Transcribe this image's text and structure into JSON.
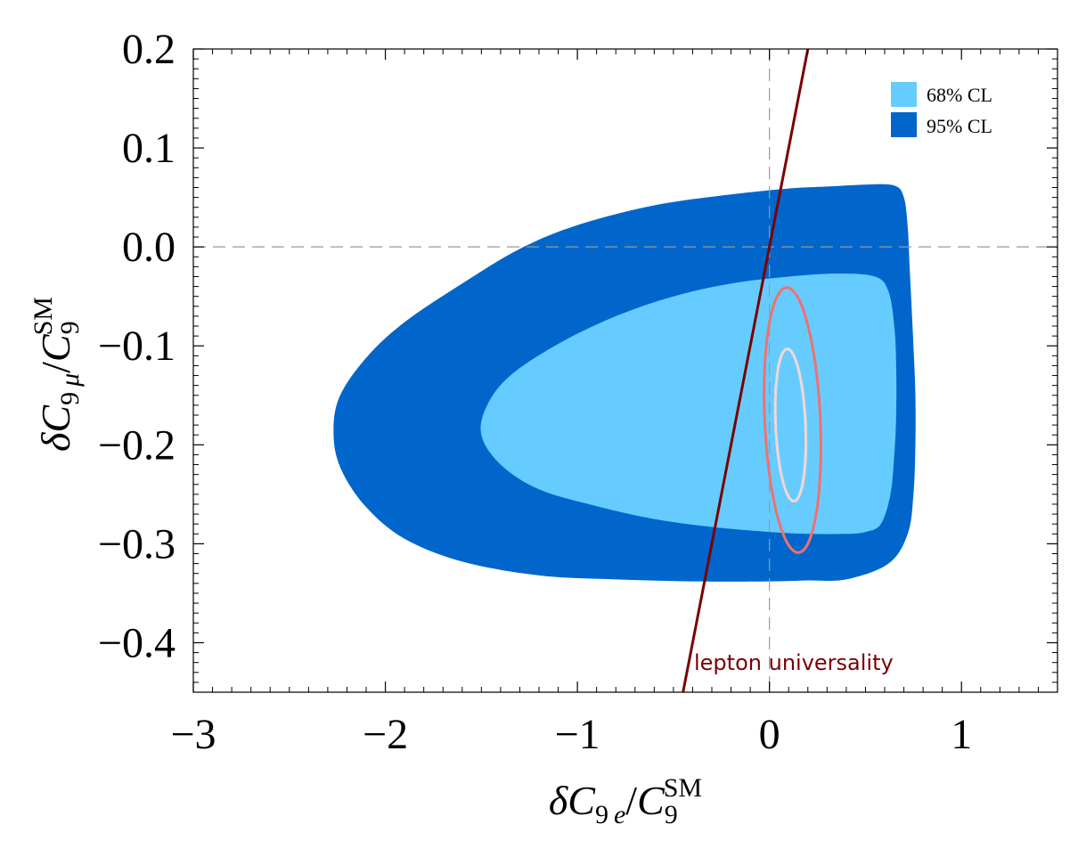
{
  "chart_data": {
    "type": "contour",
    "title": "",
    "xlabel": "δC9e/C9SM",
    "xlabel_parts": {
      "delta": "δ",
      "C": "C",
      "sub": "9",
      "subvar": "e",
      "slash": "/",
      "C2": "C",
      "sub2": "9",
      "sup2": "SM"
    },
    "ylabel": "δC9μ/C9SM",
    "ylabel_parts": {
      "delta": "δ",
      "C": "C",
      "sub": "9",
      "subvar": "μ",
      "slash": "/",
      "C2": "C",
      "sub2": "9",
      "sup2": "SM"
    },
    "xlim": [
      -3,
      1.5
    ],
    "ylim": [
      -0.45,
      0.2
    ],
    "xticks": [
      -3,
      -2,
      -1,
      0,
      1
    ],
    "xtick_labels": [
      "−3",
      "−2",
      "−1",
      "0",
      "1"
    ],
    "yticks": [
      0.2,
      0.1,
      0.0,
      -0.1,
      -0.2,
      -0.3,
      -0.4
    ],
    "ytick_labels": [
      "0.2",
      "0.1",
      "0.0",
      "−0.1",
      "−0.2",
      "−0.3",
      "−0.4"
    ],
    "colors": {
      "cl68": "#66CCFF",
      "cl95": "#0066CC",
      "contour_outer": "#F07070",
      "contour_inner": "#F2D6D6",
      "lepton_line": "#7A0000",
      "guides": "#999999"
    },
    "legend": {
      "position": "top-right",
      "entries": [
        {
          "label": "68% CL",
          "color": "#66CCFF"
        },
        {
          "label": "95% CL",
          "color": "#0066CC"
        }
      ]
    },
    "regions": [
      {
        "name": "95% CL",
        "color": "#0066CC",
        "points": [
          [
            0.65,
            0.062
          ],
          [
            0.7,
            0.05
          ],
          [
            0.72,
            0.02
          ],
          [
            0.73,
            -0.02
          ],
          [
            0.74,
            -0.06
          ],
          [
            0.75,
            -0.1
          ],
          [
            0.76,
            -0.15
          ],
          [
            0.76,
            -0.2
          ],
          [
            0.75,
            -0.25
          ],
          [
            0.72,
            -0.29
          ],
          [
            0.62,
            -0.32
          ],
          [
            0.4,
            -0.336
          ],
          [
            0.2,
            -0.337
          ],
          [
            0.0,
            -0.338
          ],
          [
            -0.4,
            -0.338
          ],
          [
            -0.8,
            -0.336
          ],
          [
            -1.2,
            -0.332
          ],
          [
            -1.6,
            -0.318
          ],
          [
            -1.9,
            -0.295
          ],
          [
            -2.1,
            -0.263
          ],
          [
            -2.23,
            -0.225
          ],
          [
            -2.27,
            -0.19
          ],
          [
            -2.24,
            -0.152
          ],
          [
            -2.1,
            -0.112
          ],
          [
            -1.9,
            -0.076
          ],
          [
            -1.6,
            -0.037
          ],
          [
            -1.3,
            -0.002
          ],
          [
            -1.0,
            0.022
          ],
          [
            -0.6,
            0.042
          ],
          [
            -0.2,
            0.053
          ],
          [
            0.1,
            0.059
          ],
          [
            0.3,
            0.061
          ],
          [
            0.5,
            0.063
          ]
        ]
      },
      {
        "name": "68% CL",
        "color": "#66CCFF",
        "points": [
          [
            0.55,
            -0.03
          ],
          [
            0.62,
            -0.045
          ],
          [
            0.65,
            -0.08
          ],
          [
            0.66,
            -0.12
          ],
          [
            0.66,
            -0.17
          ],
          [
            0.65,
            -0.21
          ],
          [
            0.63,
            -0.25
          ],
          [
            0.58,
            -0.28
          ],
          [
            0.5,
            -0.288
          ],
          [
            0.4,
            -0.29
          ],
          [
            0.2,
            -0.29
          ],
          [
            0.0,
            -0.288
          ],
          [
            -0.3,
            -0.283
          ],
          [
            -0.6,
            -0.275
          ],
          [
            -0.9,
            -0.262
          ],
          [
            -1.2,
            -0.245
          ],
          [
            -1.4,
            -0.22
          ],
          [
            -1.5,
            -0.19
          ],
          [
            -1.47,
            -0.16
          ],
          [
            -1.35,
            -0.13
          ],
          [
            -1.1,
            -0.098
          ],
          [
            -0.8,
            -0.07
          ],
          [
            -0.5,
            -0.05
          ],
          [
            -0.2,
            -0.037
          ],
          [
            0.1,
            -0.03
          ],
          [
            0.35,
            -0.027
          ]
        ]
      }
    ],
    "contours": [
      {
        "name": "outer-contour",
        "color": "#F07070",
        "center": [
          0.12,
          -0.175
        ],
        "width_radius": 0.145,
        "height_radius": 0.134,
        "tilt": -0.22
      },
      {
        "name": "inner-contour",
        "color": "#F2D6D6",
        "center": [
          0.11,
          -0.18
        ],
        "width_radius": 0.078,
        "height_radius": 0.077,
        "tilt": -0.22
      }
    ],
    "reference_lines": [
      {
        "name": "x-zero",
        "orientation": "vertical",
        "value": 0
      },
      {
        "name": "y-zero",
        "orientation": "horizontal",
        "value": 0
      }
    ],
    "lepton_universality_line": {
      "label": "lepton universality",
      "points": [
        [
          -0.45,
          -0.45
        ],
        [
          0.2,
          0.2
        ]
      ]
    }
  }
}
